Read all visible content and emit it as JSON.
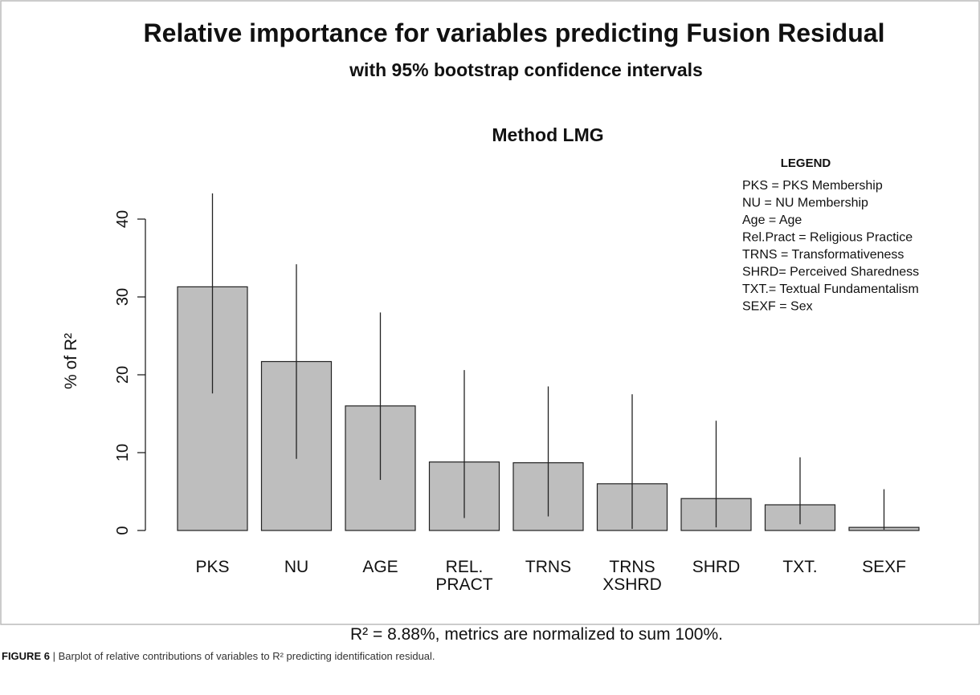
{
  "chart_data": {
    "type": "bar",
    "title": "Relative importance for variables predicting Fusion Residual",
    "subtitle": "with 95% bootstrap confidence intervals",
    "plot_title": "Method LMG",
    "y_label": "% of R²",
    "footer": "R² = 8.88%, metrics are normalized to sum 100%.",
    "legend_title": "LEGEND",
    "legend_lines": [
      "PKS = PKS Membership",
      "NU = NU Membership",
      "Age = Age",
      "Rel.Pract = Religious Practice",
      "TRNS = Transformativeness",
      "SHRD= Perceived Sharedness",
      "TXT.= Textual Fundamentalism",
      "SEXF = Sex"
    ],
    "categories": [
      "PKS",
      "NU",
      "AGE",
      "REL.\nPRACT",
      "TRNS",
      "TRNS\nXSHRD",
      "SHRD",
      "TXT.",
      "SEXF"
    ],
    "values": [
      31.3,
      21.7,
      16.0,
      8.8,
      8.7,
      6.0,
      4.1,
      3.3,
      0.4
    ],
    "ci_lower": [
      17.6,
      9.2,
      6.5,
      1.6,
      1.8,
      0.2,
      0.4,
      0.8,
      0.1
    ],
    "ci_upper": [
      43.3,
      34.2,
      28.0,
      20.6,
      18.5,
      17.5,
      14.1,
      9.4,
      5.3
    ],
    "color": "#bebebe",
    "ylim": [
      0,
      44
    ],
    "yticks": [
      0,
      10,
      20,
      30,
      40
    ]
  },
  "caption": {
    "label": "FIGURE 6",
    "text": " | Barplot of relative contributions of variables to R² predicting identification residual."
  }
}
